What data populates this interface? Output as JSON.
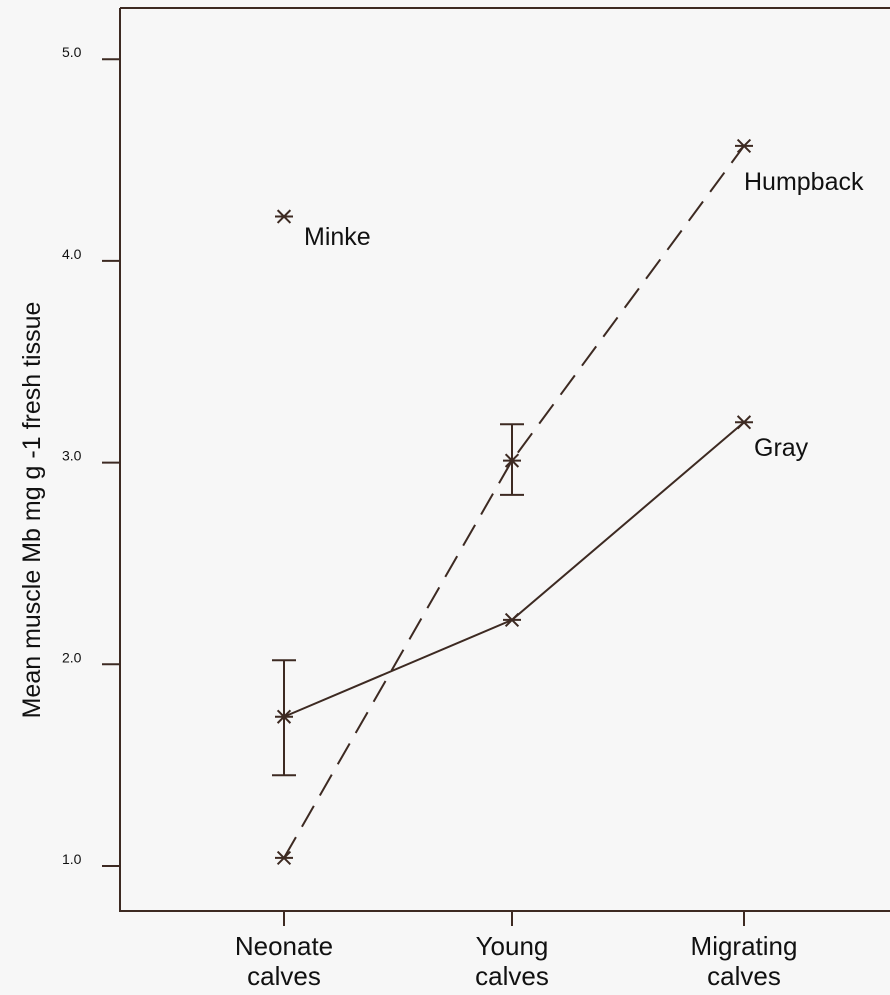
{
  "chart_data": {
    "type": "line",
    "title": "",
    "xlabel": "",
    "ylabel": "Mean muscle Mb mg g -1 fresh tissue",
    "categories": [
      "Neonate calves",
      "Young calves",
      "Migrating calves"
    ],
    "ylim": [
      0.75,
      5.25
    ],
    "yticks": [
      "1.0",
      "2.0",
      "3.0",
      "4.0",
      "5.0"
    ],
    "grid": false,
    "series": [
      {
        "name": "Gray",
        "values": [
          1.74,
          2.22,
          3.2
        ],
        "error": [
          [
            1.45,
            2.02
          ],
          null,
          null
        ],
        "line": "solid"
      },
      {
        "name": "Humpback",
        "values": [
          1.04,
          3.01,
          4.57
        ],
        "error": [
          null,
          [
            2.84,
            3.19
          ],
          null
        ],
        "line": "dashed"
      },
      {
        "name": "Minke",
        "values": [
          4.22,
          null,
          null
        ],
        "error": [
          null,
          null,
          null
        ],
        "line": "none"
      }
    ],
    "colors": {
      "line": "#3d2a22",
      "background": "#f7f7f7"
    }
  }
}
